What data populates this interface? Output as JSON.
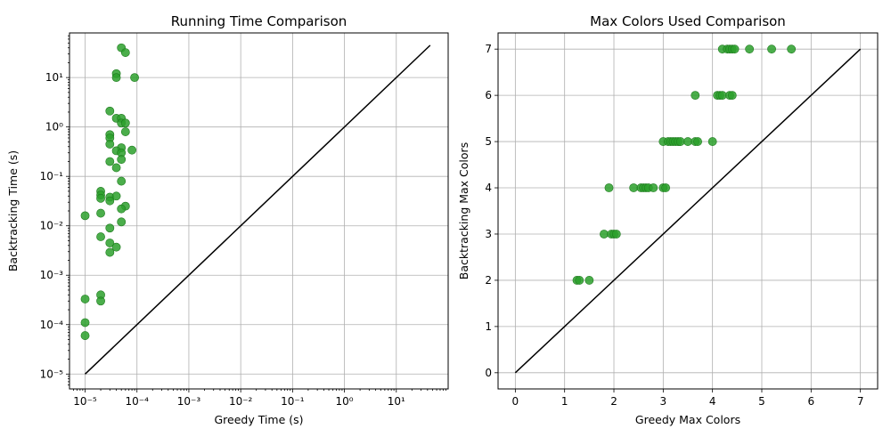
{
  "colors": {
    "points": "#2ca02c",
    "point_edge": "#1f7a1f",
    "reference_line": "#000000",
    "grid": "#b0b0b0"
  },
  "chart_data": [
    {
      "type": "scatter",
      "title": "Running Time Comparison",
      "xlabel": "Greedy Time (s)",
      "ylabel": "Backtracking Time (s)",
      "xscale": "log",
      "yscale": "log",
      "xlim": [
        5e-06,
        100
      ],
      "ylim": [
        5e-06,
        80
      ],
      "xticks": [
        1e-05,
        0.0001,
        0.001,
        0.01,
        0.1,
        1,
        10
      ],
      "yticks": [
        1e-05,
        0.0001,
        0.001,
        0.01,
        0.1,
        1,
        10
      ],
      "grid": true,
      "reference_line": {
        "from": [
          1e-05,
          1e-05
        ],
        "to": [
          45,
          45
        ]
      },
      "points": [
        [
          5e-05,
          40
        ],
        [
          6e-05,
          32
        ],
        [
          4e-05,
          12
        ],
        [
          4e-05,
          10
        ],
        [
          9e-05,
          10
        ],
        [
          3e-05,
          2.1
        ],
        [
          4e-05,
          1.5
        ],
        [
          5e-05,
          1.5
        ],
        [
          5e-05,
          1.2
        ],
        [
          6e-05,
          1.2
        ],
        [
          6e-05,
          0.8
        ],
        [
          3e-05,
          0.7
        ],
        [
          3e-05,
          0.6
        ],
        [
          3e-05,
          0.45
        ],
        [
          5e-05,
          0.38
        ],
        [
          4e-05,
          0.33
        ],
        [
          8e-05,
          0.34
        ],
        [
          5e-05,
          0.3
        ],
        [
          5e-05,
          0.22
        ],
        [
          3e-05,
          0.2
        ],
        [
          4e-05,
          0.15
        ],
        [
          5e-05,
          0.08
        ],
        [
          2e-05,
          0.05
        ],
        [
          2e-05,
          0.042
        ],
        [
          2e-05,
          0.036
        ],
        [
          3e-05,
          0.038
        ],
        [
          3e-05,
          0.032
        ],
        [
          4e-05,
          0.04
        ],
        [
          6e-05,
          0.025
        ],
        [
          5e-05,
          0.022
        ],
        [
          1e-05,
          0.016
        ],
        [
          2e-05,
          0.018
        ],
        [
          5e-05,
          0.012
        ],
        [
          3e-05,
          0.009
        ],
        [
          2e-05,
          0.006
        ],
        [
          3e-05,
          0.0045
        ],
        [
          4e-05,
          0.0037
        ],
        [
          3e-05,
          0.0029
        ],
        [
          2e-05,
          0.0004
        ],
        [
          1e-05,
          0.00033
        ],
        [
          2e-05,
          0.0003
        ],
        [
          1e-05,
          0.00011
        ],
        [
          1e-05,
          6e-05
        ]
      ]
    },
    {
      "type": "scatter",
      "title": "Max Colors Used Comparison",
      "xlabel": "Greedy Max Colors",
      "ylabel": "Backtracking Max Colors",
      "xlim": [
        -0.35,
        7.35
      ],
      "ylim": [
        -0.35,
        7.35
      ],
      "xticks": [
        0,
        1,
        2,
        3,
        4,
        5,
        6,
        7
      ],
      "yticks": [
        0,
        1,
        2,
        3,
        4,
        5,
        6,
        7
      ],
      "grid": true,
      "reference_line": {
        "from": [
          0,
          0
        ],
        "to": [
          7,
          7
        ]
      },
      "points": [
        [
          4.2,
          7
        ],
        [
          4.3,
          7
        ],
        [
          4.35,
          7
        ],
        [
          4.4,
          7
        ],
        [
          4.45,
          7
        ],
        [
          4.75,
          7
        ],
        [
          5.2,
          7
        ],
        [
          5.6,
          7
        ],
        [
          3.65,
          6
        ],
        [
          4.1,
          6
        ],
        [
          4.15,
          6
        ],
        [
          4.2,
          6
        ],
        [
          4.35,
          6
        ],
        [
          4.4,
          6
        ],
        [
          3.0,
          5
        ],
        [
          3.1,
          5
        ],
        [
          3.15,
          5
        ],
        [
          3.2,
          5
        ],
        [
          3.25,
          5
        ],
        [
          3.3,
          5
        ],
        [
          3.35,
          5
        ],
        [
          3.5,
          5
        ],
        [
          3.65,
          5
        ],
        [
          3.7,
          5
        ],
        [
          4.0,
          5
        ],
        [
          1.9,
          4
        ],
        [
          2.4,
          4
        ],
        [
          2.55,
          4
        ],
        [
          2.6,
          4
        ],
        [
          2.65,
          4
        ],
        [
          2.7,
          4
        ],
        [
          2.8,
          4
        ],
        [
          3.0,
          4
        ],
        [
          3.05,
          4
        ],
        [
          1.8,
          3
        ],
        [
          1.95,
          3
        ],
        [
          2.0,
          3
        ],
        [
          2.05,
          3
        ],
        [
          1.25,
          2
        ],
        [
          1.3,
          2
        ],
        [
          1.5,
          2
        ]
      ]
    }
  ]
}
